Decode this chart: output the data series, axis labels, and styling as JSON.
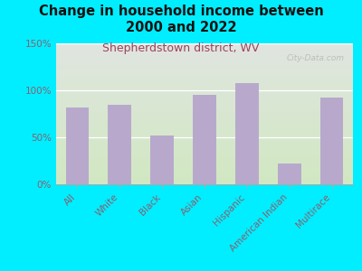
{
  "title": "Change in household income between\n2000 and 2022",
  "subtitle": "Shepherdstown district, WV",
  "categories": [
    "All",
    "White",
    "Black",
    "Asian",
    "Hispanic",
    "American Indian",
    "Multirace"
  ],
  "values": [
    82,
    85,
    52,
    95,
    108,
    22,
    92
  ],
  "bar_color": "#b8a9cc",
  "background_outer": "#00eeff",
  "background_plot_top": "#e8e8e8",
  "background_plot_bottom": "#d4e8c8",
  "title_color": "#111111",
  "subtitle_color": "#a04060",
  "tick_label_color": "#886070",
  "watermark": "City-Data.com",
  "ylim": [
    0,
    150
  ],
  "yticks": [
    0,
    50,
    100,
    150
  ],
  "title_fontsize": 10.5,
  "subtitle_fontsize": 9,
  "tick_fontsize": 7.5
}
